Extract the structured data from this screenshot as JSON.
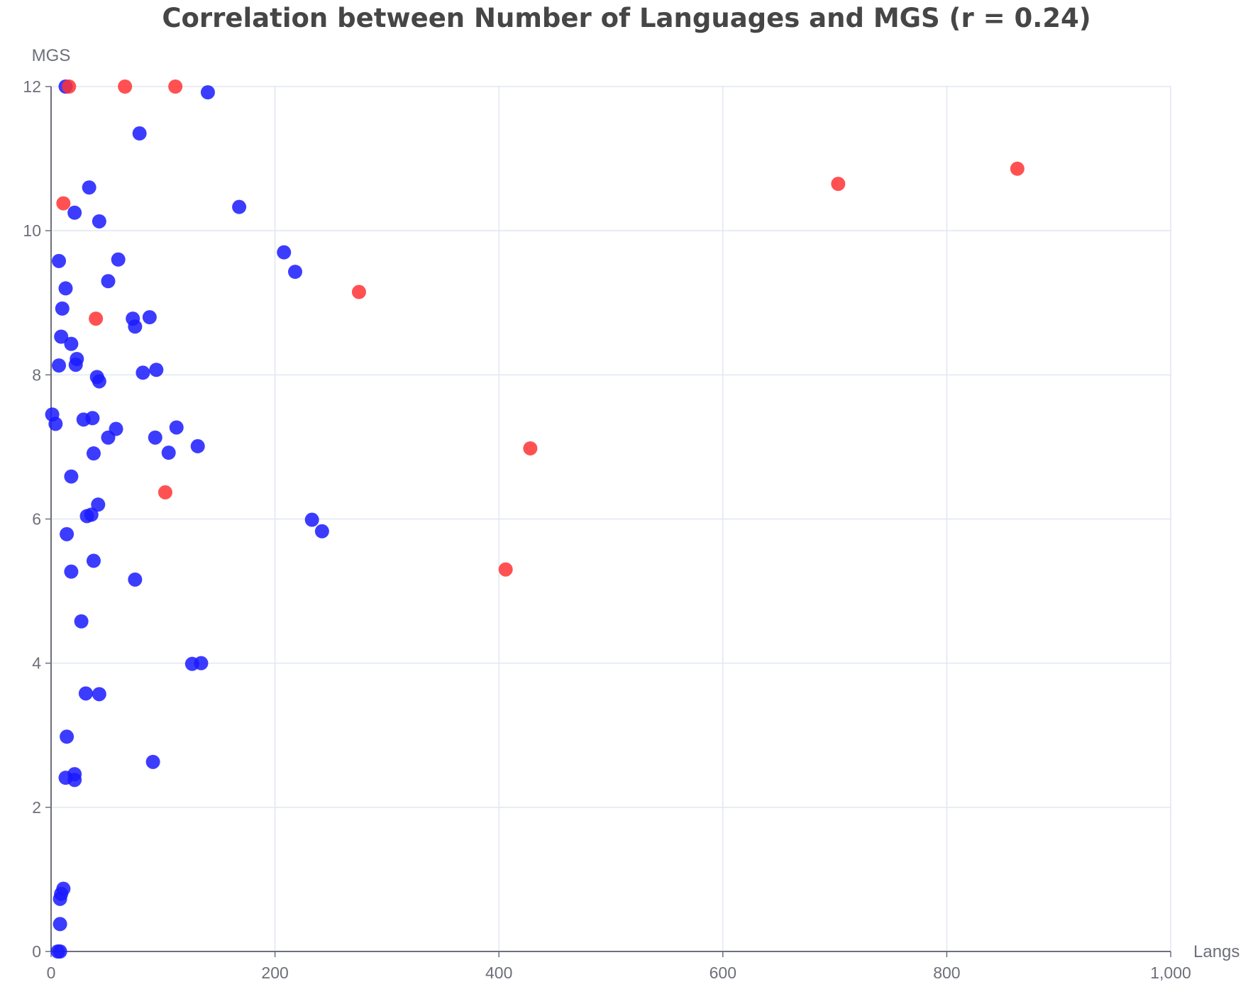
{
  "chart_data": {
    "type": "scatter",
    "title": "Correlation between Number of Languages and MGS (r = 0.24)",
    "xlabel": "Langs",
    "ylabel": "MGS",
    "xlim": [
      0,
      1000
    ],
    "ylim": [
      0,
      12
    ],
    "x_ticks": [
      0,
      200,
      400,
      600,
      800,
      1000
    ],
    "x_tick_labels": [
      "0",
      "200",
      "400",
      "600",
      "800",
      "1,000"
    ],
    "y_ticks": [
      0,
      2,
      4,
      6,
      8,
      10,
      12
    ],
    "y_tick_labels": [
      "0",
      "2",
      "4",
      "6",
      "8",
      "10",
      "12"
    ],
    "grid": true,
    "colors": {
      "blue": "#1a1aff",
      "red": "#ff3333",
      "grid": "#e0e6f1",
      "axis": "#6e7079"
    },
    "series": [
      {
        "color": "#1a1aff",
        "points": [
          [
            13,
            12.0
          ],
          [
            140,
            11.92
          ],
          [
            79,
            11.35
          ],
          [
            34,
            10.6
          ],
          [
            21,
            10.25
          ],
          [
            43,
            10.13
          ],
          [
            168,
            10.33
          ],
          [
            7,
            9.58
          ],
          [
            60,
            9.6
          ],
          [
            208,
            9.7
          ],
          [
            218,
            9.43
          ],
          [
            51,
            9.3
          ],
          [
            13,
            9.2
          ],
          [
            10,
            8.92
          ],
          [
            73,
            8.78
          ],
          [
            75,
            8.67
          ],
          [
            88,
            8.8
          ],
          [
            9,
            8.53
          ],
          [
            18,
            8.43
          ],
          [
            23,
            8.22
          ],
          [
            22,
            8.14
          ],
          [
            7,
            8.13
          ],
          [
            41,
            7.97
          ],
          [
            43,
            7.91
          ],
          [
            82,
            8.03
          ],
          [
            94,
            8.07
          ],
          [
            1,
            7.45
          ],
          [
            4,
            7.32
          ],
          [
            29,
            7.38
          ],
          [
            37,
            7.4
          ],
          [
            58,
            7.25
          ],
          [
            51,
            7.13
          ],
          [
            93,
            7.13
          ],
          [
            112,
            7.27
          ],
          [
            105,
            6.92
          ],
          [
            131,
            7.01
          ],
          [
            38,
            6.91
          ],
          [
            18,
            6.59
          ],
          [
            42,
            6.2
          ],
          [
            32,
            6.04
          ],
          [
            36,
            6.06
          ],
          [
            14,
            5.79
          ],
          [
            233,
            5.99
          ],
          [
            242,
            5.83
          ],
          [
            38,
            5.42
          ],
          [
            18,
            5.27
          ],
          [
            75,
            5.16
          ],
          [
            27,
            4.58
          ],
          [
            126,
            3.99
          ],
          [
            134,
            4.0
          ],
          [
            31,
            3.58
          ],
          [
            43,
            3.57
          ],
          [
            14,
            2.98
          ],
          [
            91,
            2.63
          ],
          [
            21,
            2.46
          ],
          [
            13,
            2.41
          ],
          [
            21,
            2.38
          ],
          [
            11,
            0.87
          ],
          [
            9,
            0.8
          ],
          [
            8,
            0.73
          ],
          [
            8,
            0.38
          ],
          [
            6,
            0.0
          ],
          [
            8,
            0.0
          ]
        ]
      },
      {
        "color": "#ff3333",
        "points": [
          [
            16,
            12.0
          ],
          [
            66,
            12.0
          ],
          [
            111,
            12.0
          ],
          [
            11,
            10.38
          ],
          [
            40,
            8.78
          ],
          [
            275,
            9.15
          ],
          [
            428,
            6.98
          ],
          [
            102,
            6.37
          ],
          [
            406,
            5.3
          ],
          [
            703,
            10.65
          ],
          [
            863,
            10.86
          ]
        ]
      }
    ]
  }
}
